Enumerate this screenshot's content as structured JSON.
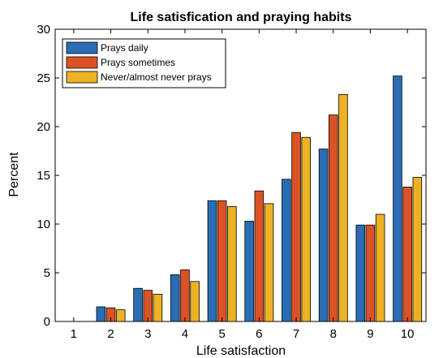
{
  "chart_data": {
    "type": "bar",
    "title": "Life satisfication and praying habits",
    "xlabel": "Life satisfaction",
    "ylabel": "Percent",
    "ylim": [
      0,
      30
    ],
    "yticks": [
      0,
      5,
      10,
      15,
      20,
      25,
      30
    ],
    "categories": [
      "1",
      "2",
      "3",
      "4",
      "5",
      "6",
      "7",
      "8",
      "9",
      "10"
    ],
    "legend_position": "top-left",
    "grid": false,
    "series": [
      {
        "name": "Prays daily",
        "color": "#2a6db5",
        "values": [
          0,
          1.5,
          3.4,
          4.8,
          12.4,
          10.3,
          14.6,
          17.7,
          9.9,
          25.2
        ]
      },
      {
        "name": "Prays sometimes",
        "color": "#db5226",
        "values": [
          0,
          1.4,
          3.2,
          5.3,
          12.4,
          13.4,
          19.4,
          21.2,
          9.9,
          13.8
        ]
      },
      {
        "name": "Never/almost never prays",
        "color": "#ecb224",
        "values": [
          0,
          1.2,
          2.8,
          4.1,
          11.8,
          12.1,
          18.9,
          23.3,
          11.0,
          14.8
        ]
      }
    ]
  }
}
